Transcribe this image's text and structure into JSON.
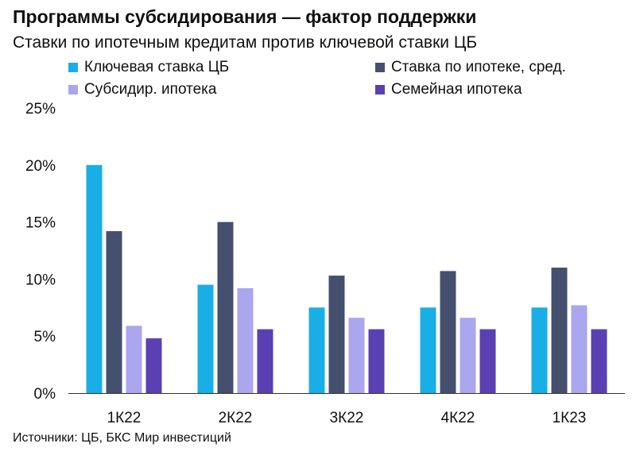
{
  "header": {
    "title": "Программы субсидирования — фактор поддержки",
    "subtitle": "Ставки по ипотечным кредитам против ключевой ставки ЦБ"
  },
  "footer": {
    "source": "Источники: ЦБ, БКС Мир инвестиций"
  },
  "chart_data": {
    "type": "bar",
    "title": "Программы субсидирования — фактор поддержки",
    "subtitle": "Ставки по ипотечным кредитам против ключевой ставки ЦБ",
    "categories": [
      "1К22",
      "2К22",
      "3К22",
      "4К22",
      "1К23"
    ],
    "series": [
      {
        "name": "Ключевая ставка ЦБ",
        "color": "#1aaee6",
        "values": [
          20,
          9.5,
          7.5,
          7.5,
          7.5
        ]
      },
      {
        "name": "Ставка по ипотеке, сред.",
        "color": "#45506f",
        "values": [
          14.2,
          15,
          10.3,
          10.7,
          11
        ]
      },
      {
        "name": "Субсидир. ипотека",
        "color": "#aba6ee",
        "values": [
          5.9,
          9.2,
          6.6,
          6.6,
          7.7
        ]
      },
      {
        "name": "Семейная ипотека",
        "color": "#5a40b3",
        "values": [
          4.8,
          5.6,
          5.6,
          5.6,
          5.6
        ]
      }
    ],
    "ylim": [
      0,
      25
    ],
    "yticks": [
      0,
      5,
      10,
      15,
      20,
      25
    ],
    "ytick_labels": [
      "0%",
      "5%",
      "10%",
      "15%",
      "20%",
      "25%"
    ],
    "grid": false,
    "legend_position": "top"
  }
}
